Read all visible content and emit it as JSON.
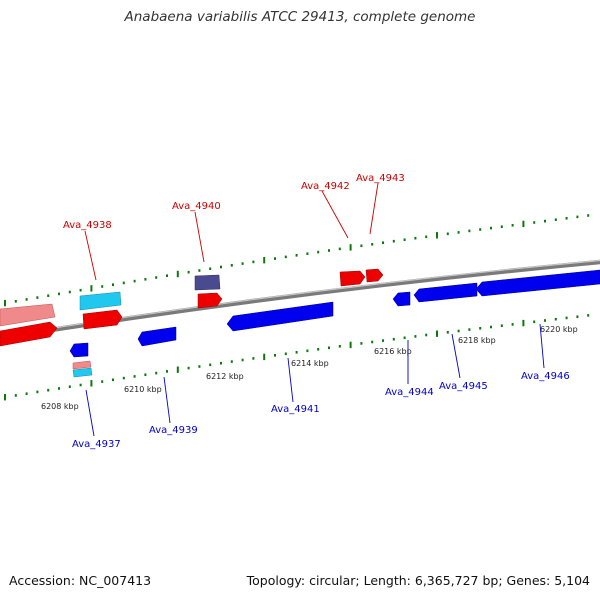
{
  "header": {
    "title": "Anabaena variabilis ATCC 29413, complete genome"
  },
  "footer": {
    "accession": "Accession: NC_007413",
    "summary": "Topology: circular; Length: 6,365,727 bp; Genes: 5,104"
  },
  "colors": {
    "forward_gene": "#ff0000",
    "forward_gene_light": "#f08080",
    "reverse_gene": "#0000ff",
    "cyan_feature": "#1ec8f0",
    "purple_feature": "#4a4a90",
    "forward_label": "#cc0000",
    "reverse_label": "#0000cc",
    "tick": "#0a7a0a",
    "backbone": "#888888"
  },
  "ruler": {
    "unit": "kbp",
    "labels": [
      "6208 kbp",
      "6210 kbp",
      "6212 kbp",
      "6214 kbp",
      "6216 kbp",
      "6218 kbp",
      "6220 kbp"
    ]
  },
  "genes": {
    "forward": [
      "Ava_4938",
      "Ava_4940",
      "Ava_4942",
      "Ava_4943"
    ],
    "reverse": [
      "Ava_4937",
      "Ava_4939",
      "Ava_4941",
      "Ava_4944",
      "Ava_4945",
      "Ava_4946"
    ]
  }
}
